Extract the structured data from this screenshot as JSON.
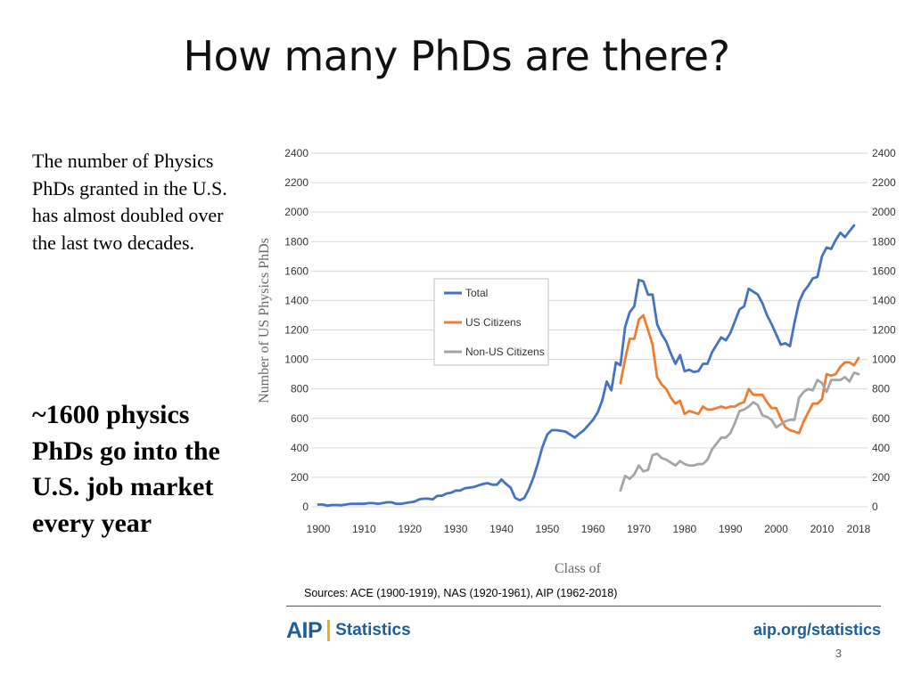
{
  "slide": {
    "title": "How many PhDs are there?",
    "left_paragraph": "The number of Physics PhDs granted in the U.S. has almost doubled over the last two decades.",
    "left_bold": "~1600 physics PhDs go into the U.S. job market every year",
    "page_number": "3"
  },
  "footer": {
    "sources": "Sources: ACE (1900-1919), NAS (1920-1961), AIP (1962-2018)",
    "logo_aip": "AIP",
    "logo_statistics": "Statistics",
    "site": "aip.org/statistics"
  },
  "colors": {
    "total": "#4472c4",
    "us_citizens": "#ed7d31",
    "non_us_citizens": "#a5a5a5",
    "grid": "#d9d9d9",
    "brand": "#1b5e9b",
    "brand_accent": "#f0ac1c"
  },
  "chart_data": {
    "type": "line",
    "title": "",
    "xlabel": "Class of",
    "ylabel": "Number of US Physics PhDs",
    "xlim": [
      1900,
      2018
    ],
    "ylim": [
      0,
      2400
    ],
    "x_ticks": [
      "1900",
      "1910",
      "1920",
      "1930",
      "1940",
      "1950",
      "1960",
      "1970",
      "1980",
      "1990",
      "2000",
      "2010",
      "2018"
    ],
    "y_ticks": [
      "0",
      "200",
      "400",
      "600",
      "800",
      "1000",
      "1200",
      "1400",
      "1600",
      "1800",
      "2000",
      "2200",
      "2400"
    ],
    "grid": true,
    "legend_position": "center",
    "series": [
      {
        "name": "Total",
        "color": "#4472c4",
        "points": [
          [
            1900,
            15
          ],
          [
            1901,
            15
          ],
          [
            1902,
            8
          ],
          [
            1903,
            12
          ],
          [
            1904,
            12
          ],
          [
            1905,
            10
          ],
          [
            1906,
            15
          ],
          [
            1907,
            20
          ],
          [
            1908,
            20
          ],
          [
            1909,
            20
          ],
          [
            1910,
            20
          ],
          [
            1911,
            25
          ],
          [
            1912,
            25
          ],
          [
            1913,
            20
          ],
          [
            1914,
            25
          ],
          [
            1915,
            30
          ],
          [
            1916,
            30
          ],
          [
            1917,
            20
          ],
          [
            1918,
            20
          ],
          [
            1919,
            25
          ],
          [
            1920,
            30
          ],
          [
            1921,
            35
          ],
          [
            1922,
            50
          ],
          [
            1923,
            55
          ],
          [
            1924,
            55
          ],
          [
            1925,
            50
          ],
          [
            1926,
            75
          ],
          [
            1927,
            75
          ],
          [
            1928,
            90
          ],
          [
            1929,
            95
          ],
          [
            1930,
            110
          ],
          [
            1931,
            110
          ],
          [
            1932,
            125
          ],
          [
            1933,
            130
          ],
          [
            1934,
            135
          ],
          [
            1935,
            145
          ],
          [
            1936,
            155
          ],
          [
            1937,
            160
          ],
          [
            1938,
            150
          ],
          [
            1939,
            150
          ],
          [
            1940,
            185
          ],
          [
            1941,
            155
          ],
          [
            1942,
            130
          ],
          [
            1943,
            60
          ],
          [
            1944,
            45
          ],
          [
            1945,
            60
          ],
          [
            1946,
            120
          ],
          [
            1947,
            200
          ],
          [
            1948,
            300
          ],
          [
            1949,
            410
          ],
          [
            1950,
            490
          ],
          [
            1951,
            520
          ],
          [
            1952,
            520
          ],
          [
            1953,
            515
          ],
          [
            1954,
            510
          ],
          [
            1955,
            490
          ],
          [
            1956,
            470
          ],
          [
            1957,
            495
          ],
          [
            1958,
            520
          ],
          [
            1959,
            555
          ],
          [
            1960,
            590
          ],
          [
            1961,
            640
          ],
          [
            1962,
            720
          ],
          [
            1963,
            850
          ],
          [
            1964,
            790
          ],
          [
            1965,
            980
          ],
          [
            1966,
            960
          ],
          [
            1967,
            1220
          ],
          [
            1968,
            1320
          ],
          [
            1969,
            1360
          ],
          [
            1970,
            1540
          ],
          [
            1971,
            1530
          ],
          [
            1972,
            1440
          ],
          [
            1973,
            1440
          ],
          [
            1974,
            1240
          ],
          [
            1975,
            1170
          ],
          [
            1976,
            1120
          ],
          [
            1977,
            1040
          ],
          [
            1978,
            970
          ],
          [
            1979,
            1030
          ],
          [
            1980,
            920
          ],
          [
            1981,
            930
          ],
          [
            1982,
            915
          ],
          [
            1983,
            920
          ],
          [
            1984,
            970
          ],
          [
            1985,
            970
          ],
          [
            1986,
            1050
          ],
          [
            1987,
            1100
          ],
          [
            1988,
            1150
          ],
          [
            1989,
            1130
          ],
          [
            1990,
            1180
          ],
          [
            1991,
            1260
          ],
          [
            1992,
            1340
          ],
          [
            1993,
            1360
          ],
          [
            1994,
            1480
          ],
          [
            1995,
            1460
          ],
          [
            1996,
            1440
          ],
          [
            1997,
            1380
          ],
          [
            1998,
            1300
          ],
          [
            1999,
            1240
          ],
          [
            2000,
            1170
          ],
          [
            2001,
            1100
          ],
          [
            2002,
            1110
          ],
          [
            2003,
            1090
          ],
          [
            2004,
            1250
          ],
          [
            2005,
            1390
          ],
          [
            2006,
            1460
          ],
          [
            2007,
            1500
          ],
          [
            2008,
            1550
          ],
          [
            2009,
            1560
          ],
          [
            2010,
            1700
          ],
          [
            2011,
            1760
          ],
          [
            2012,
            1750
          ],
          [
            2013,
            1810
          ],
          [
            2014,
            1860
          ],
          [
            2015,
            1830
          ],
          [
            2016,
            1870
          ],
          [
            2017,
            1910
          ]
        ]
      },
      {
        "name": "US Citizens",
        "color": "#ed7d31",
        "points": [
          [
            1966,
            840
          ],
          [
            1967,
            1000
          ],
          [
            1968,
            1140
          ],
          [
            1969,
            1140
          ],
          [
            1970,
            1270
          ],
          [
            1971,
            1300
          ],
          [
            1972,
            1200
          ],
          [
            1973,
            1100
          ],
          [
            1974,
            880
          ],
          [
            1975,
            830
          ],
          [
            1976,
            800
          ],
          [
            1977,
            740
          ],
          [
            1978,
            700
          ],
          [
            1979,
            720
          ],
          [
            1980,
            630
          ],
          [
            1981,
            650
          ],
          [
            1982,
            640
          ],
          [
            1983,
            630
          ],
          [
            1984,
            680
          ],
          [
            1985,
            660
          ],
          [
            1986,
            660
          ],
          [
            1987,
            670
          ],
          [
            1988,
            680
          ],
          [
            1989,
            670
          ],
          [
            1990,
            680
          ],
          [
            1991,
            680
          ],
          [
            1992,
            700
          ],
          [
            1993,
            710
          ],
          [
            1994,
            800
          ],
          [
            1995,
            760
          ],
          [
            1996,
            760
          ],
          [
            1997,
            760
          ],
          [
            1998,
            710
          ],
          [
            1999,
            670
          ],
          [
            2000,
            670
          ],
          [
            2001,
            600
          ],
          [
            2002,
            540
          ],
          [
            2003,
            520
          ],
          [
            2004,
            510
          ],
          [
            2005,
            500
          ],
          [
            2006,
            580
          ],
          [
            2007,
            640
          ],
          [
            2008,
            700
          ],
          [
            2009,
            700
          ],
          [
            2010,
            730
          ],
          [
            2011,
            900
          ],
          [
            2012,
            890
          ],
          [
            2013,
            900
          ],
          [
            2014,
            950
          ],
          [
            2015,
            980
          ],
          [
            2016,
            980
          ],
          [
            2017,
            960
          ],
          [
            2018,
            1010
          ]
        ]
      },
      {
        "name": "Non-US Citizens",
        "color": "#a5a5a5",
        "points": [
          [
            1966,
            110
          ],
          [
            1967,
            210
          ],
          [
            1968,
            190
          ],
          [
            1969,
            220
          ],
          [
            1970,
            280
          ],
          [
            1971,
            240
          ],
          [
            1972,
            250
          ],
          [
            1973,
            350
          ],
          [
            1974,
            360
          ],
          [
            1975,
            330
          ],
          [
            1976,
            320
          ],
          [
            1977,
            300
          ],
          [
            1978,
            280
          ],
          [
            1979,
            310
          ],
          [
            1980,
            290
          ],
          [
            1981,
            280
          ],
          [
            1982,
            280
          ],
          [
            1983,
            290
          ],
          [
            1984,
            290
          ],
          [
            1985,
            320
          ],
          [
            1986,
            390
          ],
          [
            1987,
            430
          ],
          [
            1988,
            470
          ],
          [
            1989,
            470
          ],
          [
            1990,
            500
          ],
          [
            1991,
            570
          ],
          [
            1992,
            650
          ],
          [
            1993,
            660
          ],
          [
            1994,
            680
          ],
          [
            1995,
            710
          ],
          [
            1996,
            690
          ],
          [
            1997,
            620
          ],
          [
            1998,
            610
          ],
          [
            1999,
            590
          ],
          [
            2000,
            540
          ],
          [
            2001,
            560
          ],
          [
            2002,
            580
          ],
          [
            2003,
            590
          ],
          [
            2004,
            590
          ],
          [
            2005,
            740
          ],
          [
            2006,
            780
          ],
          [
            2007,
            800
          ],
          [
            2008,
            790
          ],
          [
            2009,
            860
          ],
          [
            2010,
            840
          ],
          [
            2011,
            780
          ],
          [
            2012,
            860
          ],
          [
            2013,
            860
          ],
          [
            2014,
            860
          ],
          [
            2015,
            880
          ],
          [
            2016,
            850
          ],
          [
            2017,
            910
          ],
          [
            2018,
            900
          ]
        ]
      }
    ]
  }
}
